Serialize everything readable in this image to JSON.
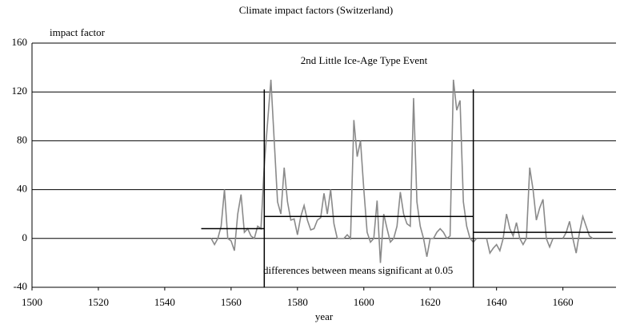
{
  "chart_data": {
    "type": "line",
    "title": "Climate impact factors (Switzerland)",
    "y_label": "impact factor",
    "x_label": "year",
    "annotations": [
      "2nd Little Ice-Age Type Event",
      "differences between means significant at 0.05"
    ],
    "x": [
      1554,
      1555,
      1556,
      1557,
      1558,
      1559,
      1560,
      1561,
      1562,
      1563,
      1564,
      1565,
      1566,
      1567,
      1568,
      1569,
      1570,
      1571,
      1572,
      1573,
      1574,
      1575,
      1576,
      1577,
      1578,
      1579,
      1580,
      1581,
      1582,
      1583,
      1584,
      1585,
      1586,
      1587,
      1588,
      1589,
      1590,
      1591,
      1592,
      1593,
      1594,
      1595,
      1596,
      1597,
      1598,
      1599,
      1600,
      1601,
      1602,
      1603,
      1604,
      1605,
      1606,
      1607,
      1608,
      1609,
      1610,
      1611,
      1612,
      1613,
      1614,
      1615,
      1616,
      1617,
      1618,
      1619,
      1620,
      1621,
      1622,
      1623,
      1624,
      1625,
      1626,
      1627,
      1628,
      1629,
      1630,
      1631,
      1632,
      1633,
      1634,
      1635,
      1636,
      1637,
      1638,
      1639,
      1640,
      1641,
      1642,
      1643,
      1644,
      1645,
      1646,
      1647,
      1648,
      1649,
      1650,
      1651,
      1652,
      1653,
      1654,
      1655,
      1656,
      1657,
      1658,
      1659,
      1660,
      1661,
      1662,
      1663,
      1664,
      1665,
      1666,
      1667,
      1668,
      1669
    ],
    "series": [
      {
        "name": "impact factor",
        "color": "#8a8a8a",
        "values": [
          0,
          -5,
          0,
          10,
          40,
          0,
          -2,
          -10,
          20,
          36,
          5,
          8,
          2,
          0,
          10,
          8,
          60,
          95,
          130,
          80,
          30,
          20,
          58,
          30,
          15,
          16,
          3,
          18,
          27,
          15,
          7,
          8,
          15,
          17,
          37,
          20,
          40,
          12,
          0,
          0,
          0,
          3,
          0,
          97,
          67,
          80,
          40,
          5,
          -3,
          0,
          31,
          -20,
          20,
          8,
          -3,
          0,
          10,
          38,
          20,
          12,
          10,
          115,
          30,
          10,
          0,
          -15,
          0,
          0,
          5,
          8,
          5,
          0,
          2,
          130,
          105,
          113,
          30,
          10,
          0,
          -3,
          0,
          null,
          null,
          0,
          -12,
          -8,
          -5,
          -10,
          0,
          20,
          8,
          2,
          13,
          0,
          -5,
          0,
          58,
          40,
          15,
          25,
          32,
          0,
          -7,
          0,
          null,
          null,
          0,
          5,
          14,
          0,
          -12,
          5,
          18,
          10,
          2,
          0
        ]
      }
    ],
    "periods": [
      {
        "start": 1551,
        "end": 1570,
        "mean": 8
      },
      {
        "start": 1570,
        "end": 1633,
        "mean": 18
      },
      {
        "start": 1633,
        "end": 1675,
        "mean": 5
      }
    ],
    "boundaries": [
      1570,
      1633
    ],
    "boundary_top": 122,
    "period_color": "#000000",
    "xlim": [
      1500,
      1676
    ],
    "xticks": [
      1500,
      1520,
      1540,
      1560,
      1580,
      1600,
      1620,
      1640,
      1660
    ],
    "ylim": [
      -40,
      160
    ],
    "yticks": [
      -40,
      0,
      40,
      80,
      120,
      160
    ],
    "grid": true
  }
}
